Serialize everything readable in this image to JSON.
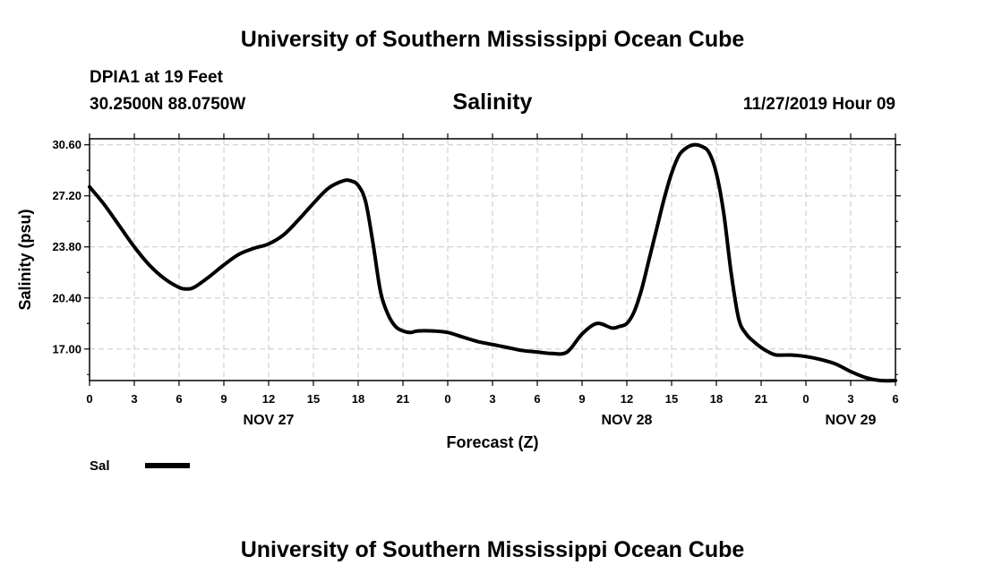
{
  "header": {
    "org_title": "University of Southern Mississippi Ocean Cube",
    "station": "DPIA1 at 19 Feet",
    "coordinates": "30.2500N 88.0750W",
    "variable": "Salinity",
    "datetime": "11/27/2019 Hour 09"
  },
  "footer": {
    "org_title": "University of Southern Mississippi Ocean Cube"
  },
  "chart_data": {
    "type": "line",
    "title": "Salinity",
    "xlabel": "Forecast (Z)",
    "ylabel": "Salinity (psu)",
    "xlim": [
      0,
      54
    ],
    "ylim": [
      14.9,
      31.0
    ],
    "grid": true,
    "y_ticks": [
      17.0,
      20.4,
      23.8,
      27.2,
      30.6
    ],
    "y_tick_labels": [
      "17.00",
      "20.40",
      "23.80",
      "27.20",
      "30.60"
    ],
    "x_ticks": [
      0,
      3,
      6,
      9,
      12,
      15,
      18,
      21,
      24,
      27,
      30,
      33,
      36,
      39,
      42,
      45,
      48,
      51,
      54
    ],
    "x_tick_labels": [
      "0",
      "3",
      "6",
      "9",
      "12",
      "15",
      "18",
      "21",
      "0",
      "3",
      "6",
      "9",
      "12",
      "15",
      "18",
      "21",
      "0",
      "3",
      "6"
    ],
    "date_labels": [
      {
        "label": "NOV 27",
        "x": 12
      },
      {
        "label": "NOV 28",
        "x": 36
      },
      {
        "label": "NOV 29",
        "x": 51
      }
    ],
    "legend": {
      "placement": "bottom-left",
      "entries": [
        "Sal"
      ]
    },
    "series": [
      {
        "name": "Sal",
        "color": "#000000",
        "x": [
          0,
          1,
          2,
          3,
          4,
          5,
          6,
          6.5,
          7,
          8,
          9,
          10,
          11,
          12,
          13,
          14,
          15,
          16,
          17,
          17.5,
          18,
          18.5,
          19,
          19.5,
          20,
          20.5,
          21,
          21.5,
          22,
          23,
          24,
          25,
          26,
          27,
          28,
          29,
          30,
          31,
          32,
          33,
          34,
          35,
          35.5,
          36,
          36.5,
          37,
          37.5,
          38,
          38.5,
          39,
          39.5,
          40,
          40.5,
          41,
          41.5,
          42,
          42.5,
          43,
          43.5,
          44,
          44.5,
          45,
          45.5,
          46,
          47,
          48,
          49,
          50,
          51,
          52,
          53,
          54
        ],
        "values": [
          27.8,
          26.6,
          25.2,
          23.8,
          22.6,
          21.7,
          21.1,
          21.0,
          21.1,
          21.8,
          22.6,
          23.3,
          23.7,
          24.0,
          24.6,
          25.6,
          26.7,
          27.7,
          28.2,
          28.2,
          27.9,
          26.8,
          24.0,
          20.8,
          19.3,
          18.5,
          18.2,
          18.1,
          18.2,
          18.2,
          18.1,
          17.8,
          17.5,
          17.3,
          17.1,
          16.9,
          16.8,
          16.7,
          16.8,
          18.0,
          18.7,
          18.4,
          18.5,
          18.7,
          19.5,
          21.0,
          23.0,
          25.0,
          27.0,
          28.7,
          29.9,
          30.4,
          30.6,
          30.5,
          30.1,
          28.7,
          26.0,
          22.0,
          19.0,
          18.0,
          17.5,
          17.1,
          16.8,
          16.6,
          16.6,
          16.5,
          16.3,
          16.0,
          15.5,
          15.1,
          14.9,
          14.9
        ]
      }
    ]
  }
}
